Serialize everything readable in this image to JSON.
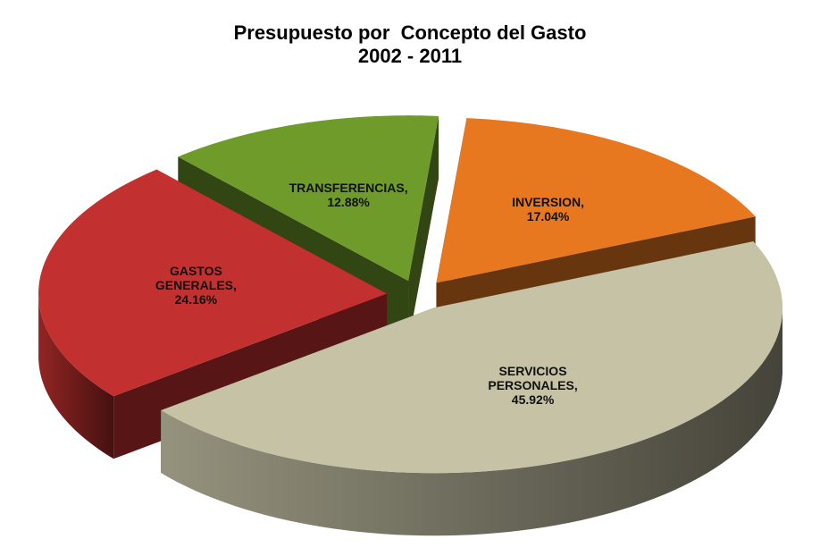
{
  "chart_data": {
    "type": "pie3d",
    "title": "Presupuesto por  Concepto del Gasto",
    "subtitle": "2002 - 2011",
    "categories": [
      "INVERSION,",
      "SERVICIOS PERSONALES,",
      "GASTOS GENERALES,",
      "TRANSFERENCIAS,"
    ],
    "values": [
      17.04,
      45.92,
      24.16,
      12.88
    ],
    "value_labels": [
      "17.04%",
      "45.92%",
      "24.16%",
      "12.88%"
    ],
    "colors": [
      "#e8781f",
      "#c6c2a6",
      "#c2312f",
      "#6f9b2b"
    ]
  }
}
